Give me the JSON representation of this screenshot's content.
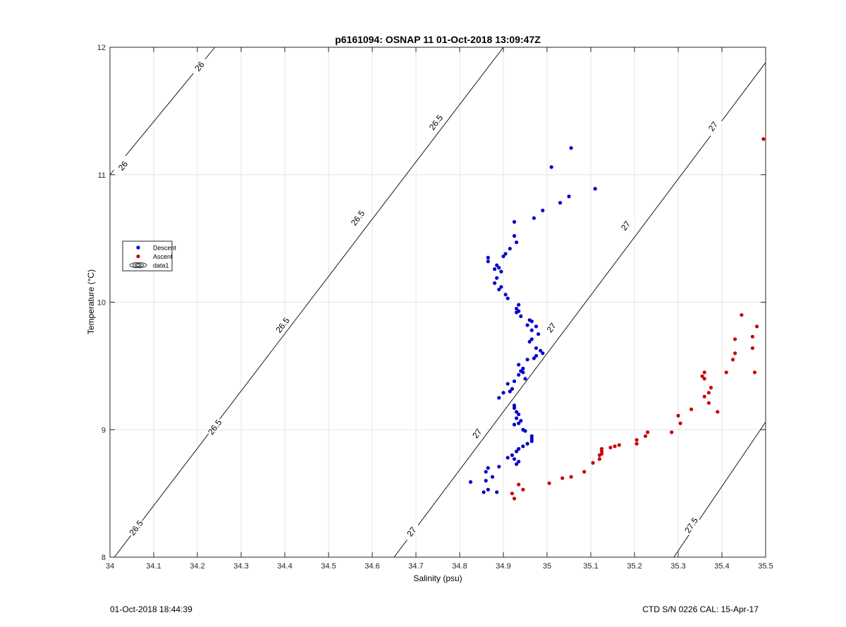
{
  "chart_data": {
    "type": "scatter",
    "title": "p6161094: OSNAP 11 01-Oct-2018 13:09:47Z",
    "xlabel": "Salinity (psu)",
    "ylabel": "Temperature (°C)",
    "xlim": [
      34,
      35.5
    ],
    "ylim": [
      8,
      12
    ],
    "xticks": [
      "34",
      "34.1",
      "34.2",
      "34.3",
      "34.4",
      "34.5",
      "34.6",
      "34.7",
      "34.8",
      "34.9",
      "35",
      "35.1",
      "35.2",
      "35.3",
      "35.4",
      "35.5"
    ],
    "yticks": [
      "8",
      "9",
      "10",
      "11",
      "12"
    ],
    "grid": true,
    "legend_position": "left-middle",
    "legend": [
      {
        "label": "Descent",
        "kind": "marker",
        "color": "#0000cc"
      },
      {
        "label": "Ascent",
        "kind": "marker",
        "color": "#cc0000"
      },
      {
        "label": "data1",
        "kind": "contour",
        "color": "#000000"
      }
    ],
    "isopycnals": [
      {
        "label": "26",
        "points": [
          [
            34.0,
            11.0
          ],
          [
            34.24,
            12.0
          ]
        ],
        "label_positions": [
          [
            34.03,
            11.07
          ],
          [
            34.205,
            11.85
          ]
        ]
      },
      {
        "label": "26.5",
        "points": [
          [
            34.01,
            8.0
          ],
          [
            34.9,
            12.0
          ]
        ],
        "label_positions": [
          [
            34.06,
            8.23
          ],
          [
            34.24,
            9.02
          ],
          [
            34.395,
            9.82
          ],
          [
            34.567,
            10.66
          ],
          [
            34.746,
            11.41
          ]
        ]
      },
      {
        "label": "27",
        "points": [
          [
            34.65,
            8.0
          ],
          [
            35.5,
            11.88
          ]
        ],
        "label_positions": [
          [
            34.69,
            8.2
          ],
          [
            34.84,
            8.97
          ],
          [
            35.01,
            9.8
          ],
          [
            35.18,
            10.6
          ],
          [
            35.38,
            11.38
          ]
        ]
      },
      {
        "label": "27.5",
        "points": [
          [
            35.29,
            8.0
          ],
          [
            35.5,
            9.06
          ]
        ],
        "label_positions": [
          [
            35.33,
            8.25
          ]
        ]
      }
    ],
    "series": [
      {
        "name": "Descent",
        "color": "#0000cc",
        "points": [
          [
            35.055,
            11.21
          ],
          [
            35.01,
            11.06
          ],
          [
            35.11,
            10.89
          ],
          [
            35.05,
            10.83
          ],
          [
            35.03,
            10.78
          ],
          [
            34.99,
            10.72
          ],
          [
            34.97,
            10.66
          ],
          [
            34.925,
            10.63
          ],
          [
            34.925,
            10.52
          ],
          [
            34.93,
            10.47
          ],
          [
            34.915,
            10.42
          ],
          [
            34.905,
            10.38
          ],
          [
            34.865,
            10.35
          ],
          [
            34.865,
            10.32
          ],
          [
            34.9,
            10.36
          ],
          [
            34.885,
            10.29
          ],
          [
            34.89,
            10.27
          ],
          [
            34.88,
            10.26
          ],
          [
            34.895,
            10.24
          ],
          [
            34.885,
            10.19
          ],
          [
            34.88,
            10.15
          ],
          [
            34.895,
            10.12
          ],
          [
            34.89,
            10.1
          ],
          [
            34.905,
            10.06
          ],
          [
            34.91,
            10.03
          ],
          [
            34.935,
            9.98
          ],
          [
            34.93,
            9.95
          ],
          [
            34.935,
            9.93
          ],
          [
            34.93,
            9.92
          ],
          [
            34.94,
            9.89
          ],
          [
            34.96,
            9.86
          ],
          [
            34.965,
            9.85
          ],
          [
            34.955,
            9.82
          ],
          [
            34.975,
            9.81
          ],
          [
            34.965,
            9.78
          ],
          [
            34.98,
            9.75
          ],
          [
            34.965,
            9.71
          ],
          [
            34.96,
            9.69
          ],
          [
            34.975,
            9.64
          ],
          [
            34.985,
            9.62
          ],
          [
            34.99,
            9.6
          ],
          [
            34.975,
            9.58
          ],
          [
            34.97,
            9.56
          ],
          [
            34.955,
            9.55
          ],
          [
            34.935,
            9.51
          ],
          [
            34.945,
            9.48
          ],
          [
            34.94,
            9.46
          ],
          [
            34.945,
            9.45
          ],
          [
            34.935,
            9.43
          ],
          [
            34.95,
            9.4
          ],
          [
            34.925,
            9.38
          ],
          [
            34.91,
            9.36
          ],
          [
            34.92,
            9.32
          ],
          [
            34.915,
            9.3
          ],
          [
            34.9,
            9.29
          ],
          [
            34.89,
            9.25
          ],
          [
            34.925,
            9.19
          ],
          [
            34.925,
            9.17
          ],
          [
            34.93,
            9.14
          ],
          [
            34.935,
            9.12
          ],
          [
            34.93,
            9.09
          ],
          [
            34.94,
            9.07
          ],
          [
            34.935,
            9.05
          ],
          [
            34.925,
            9.04
          ],
          [
            34.945,
            9.0
          ],
          [
            34.95,
            8.99
          ],
          [
            34.965,
            8.95
          ],
          [
            34.965,
            8.93
          ],
          [
            34.965,
            8.91
          ],
          [
            34.955,
            8.89
          ],
          [
            34.945,
            8.87
          ],
          [
            34.935,
            8.85
          ],
          [
            34.93,
            8.83
          ],
          [
            34.92,
            8.8
          ],
          [
            34.91,
            8.78
          ],
          [
            34.925,
            8.77
          ],
          [
            34.935,
            8.75
          ],
          [
            34.93,
            8.73
          ],
          [
            34.89,
            8.71
          ],
          [
            34.865,
            8.7
          ],
          [
            34.86,
            8.67
          ],
          [
            34.875,
            8.63
          ],
          [
            34.86,
            8.6
          ],
          [
            34.825,
            8.59
          ],
          [
            34.865,
            8.53
          ],
          [
            34.855,
            8.51
          ],
          [
            34.885,
            8.51
          ]
        ]
      },
      {
        "name": "Ascent",
        "color": "#cc0000",
        "points": [
          [
            35.495,
            11.28
          ],
          [
            35.445,
            9.9
          ],
          [
            35.48,
            9.81
          ],
          [
            35.43,
            9.71
          ],
          [
            35.47,
            9.73
          ],
          [
            35.47,
            9.64
          ],
          [
            35.43,
            9.6
          ],
          [
            35.425,
            9.55
          ],
          [
            35.41,
            9.45
          ],
          [
            35.475,
            9.45
          ],
          [
            35.36,
            9.45
          ],
          [
            35.355,
            9.42
          ],
          [
            35.36,
            9.4
          ],
          [
            35.375,
            9.33
          ],
          [
            35.37,
            9.29
          ],
          [
            35.36,
            9.26
          ],
          [
            35.37,
            9.21
          ],
          [
            35.39,
            9.14
          ],
          [
            35.33,
            9.16
          ],
          [
            35.3,
            9.11
          ],
          [
            35.305,
            9.05
          ],
          [
            35.285,
            8.98
          ],
          [
            35.23,
            8.98
          ],
          [
            35.225,
            8.95
          ],
          [
            35.205,
            8.92
          ],
          [
            35.205,
            8.89
          ],
          [
            35.165,
            8.88
          ],
          [
            35.155,
            8.87
          ],
          [
            35.145,
            8.86
          ],
          [
            35.125,
            8.85
          ],
          [
            35.125,
            8.83
          ],
          [
            35.125,
            8.81
          ],
          [
            35.12,
            8.8
          ],
          [
            35.12,
            8.77
          ],
          [
            35.105,
            8.74
          ],
          [
            35.085,
            8.67
          ],
          [
            35.055,
            8.63
          ],
          [
            35.035,
            8.62
          ],
          [
            35.005,
            8.58
          ],
          [
            34.945,
            8.53
          ],
          [
            34.935,
            8.57
          ],
          [
            34.92,
            8.5
          ],
          [
            34.925,
            8.46
          ]
        ]
      }
    ]
  },
  "footer": {
    "left": "01-Oct-2018 18:44:39",
    "right": "CTD S/N 0226  CAL: 15-Apr-17"
  }
}
